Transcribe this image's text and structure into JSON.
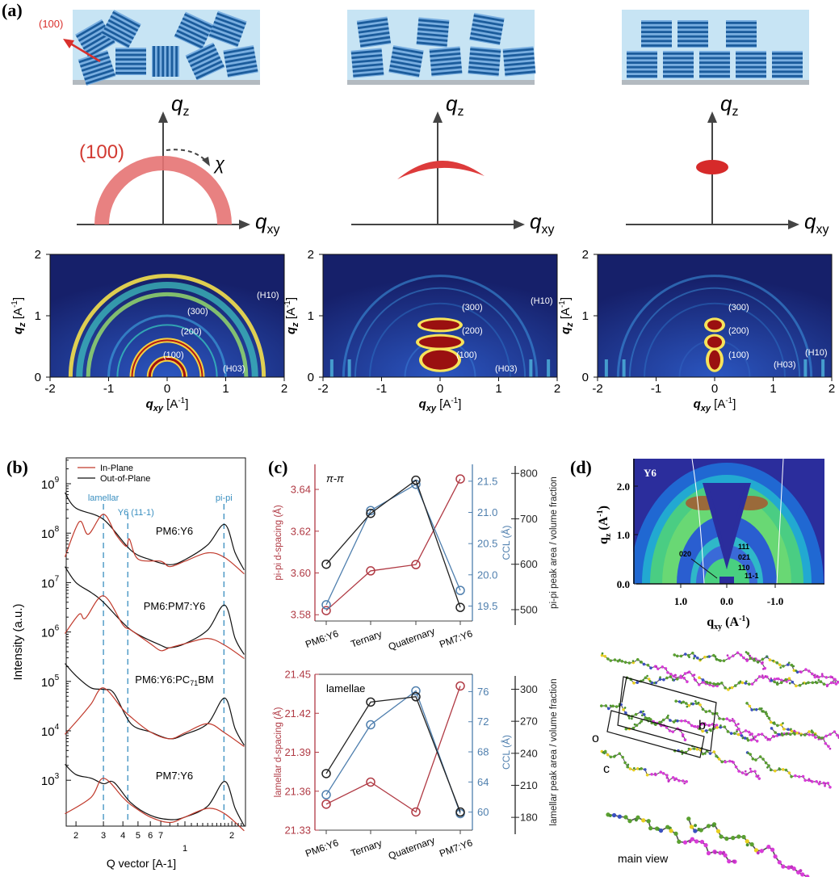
{
  "panel_labels": {
    "a": "(a)",
    "b": "(b)",
    "c": "(c)",
    "d": "(d)"
  },
  "panel_a": {
    "orientation_label": "(100)",
    "axis_q": "q",
    "sub_z": "z",
    "sub_xy": "xy",
    "chi": "χ",
    "ring_label": "(100)",
    "colors": {
      "ring": "#e57373",
      "arrow": "#d9302c",
      "film_bg": "#c7e4f4",
      "crystal_dark": "#1b5c9c",
      "crystal_light": "#79aee0",
      "substrate": "#b3bac0"
    },
    "giwaxs": {
      "unit_open": " [A",
      "unit_exp": "-1",
      "unit_close": "]",
      "x_ticks": [
        "-2",
        "-1",
        "0",
        "1",
        "2"
      ],
      "y_ticks": [
        "0",
        "1",
        "2"
      ],
      "peaks": [
        "(300)",
        "(200)",
        "(100)",
        "(H10)",
        "(H03)"
      ]
    }
  },
  "panel_d": {
    "title": "Y6",
    "y_ticks": [
      "0.0",
      "1.0",
      "2.0"
    ],
    "x_ticks": [
      "1.0",
      "0.0",
      "-1.0"
    ],
    "ylabel": {
      "main": "q",
      "sub": "z",
      "unit": " (A",
      "exp": "-1",
      "close": ")"
    },
    "xlabel": {
      "main": "q",
      "sub": "xy",
      "unit": " (A",
      "exp": "-1",
      "close": ")"
    },
    "peaks": [
      "020",
      "111",
      "021",
      "110",
      "11-1"
    ],
    "cell_labels": {
      "o": "o",
      "b": "b",
      "c": "c"
    },
    "main_view": "main view"
  },
  "chart_data": [
    {
      "type": "line",
      "panel": "(b)",
      "xlabel": "Q vector [A-1]",
      "ylabel": "Intensity (a.u.)",
      "xscale": "log",
      "yscale": "log",
      "xlim": [
        0.17,
        2.4
      ],
      "ylim": [
        50,
        5000000000.0
      ],
      "x_tick_labels": [
        "2",
        "3",
        "4",
        "5",
        "6",
        "7",
        "1",
        "2"
      ],
      "y_tick_labels": [
        "10^3",
        "10^4",
        "10^5",
        "10^6",
        "10^7",
        "10^8",
        "10^9"
      ],
      "legend": {
        "position": "top-left",
        "entries": [
          "In-Plane",
          "Out-of-Plane"
        ]
      },
      "annotations": [
        {
          "text": "lamellar",
          "x": 0.3
        },
        {
          "text": "Y6 (11-1)",
          "x": 0.43
        },
        {
          "text": "pi-pi",
          "x": 1.78
        }
      ],
      "samples": [
        {
          "label": "PM6:Y6",
          "sub": "",
          "tail": "",
          "series": [
            {
              "name": "Out-of-Plane",
              "x": [
                0.17,
                0.2,
                0.3,
                0.45,
                0.6,
                0.8,
                1.0,
                1.4,
                1.8,
                2.1,
                2.4
              ],
              "y": [
                660000000.0,
                320000000.0,
                190000000.0,
                45000000.0,
                29000000.0,
                23000000.0,
                29000000.0,
                58000000.0,
                150000000.0,
                40000000.0,
                18000000.0
              ]
            },
            {
              "name": "In-Plane",
              "x": [
                0.17,
                0.21,
                0.24,
                0.3,
                0.36,
                0.42,
                0.44,
                0.5,
                0.7,
                0.8,
                1.0,
                1.4,
                1.8,
                2.4
              ],
              "y": [
                33000000.0,
                170000000.0,
                95000000.0,
                240000000.0,
                95000000.0,
                54000000.0,
                76000000.0,
                30000000.0,
                27000000.0,
                21000000.0,
                27000000.0,
                40000000.0,
                32000000.0,
                15000000.0
              ]
            }
          ]
        },
        {
          "label": "PM6:PM7:Y6",
          "sub": "",
          "tail": "",
          "series": [
            {
              "name": "Out-of-Plane",
              "x": [
                0.17,
                0.2,
                0.25,
                0.3,
                0.45,
                0.7,
                0.8,
                1.0,
                1.4,
                1.8,
                2.1,
                2.4
              ],
              "y": [
                21000000.0,
                10000000.0,
                6300000.0,
                4000000.0,
                1100000.0,
                540000.0,
                480000.0,
                580000.0,
                1100000.0,
                3500000.0,
                740000.0,
                350000.0
              ]
            },
            {
              "name": "In-Plane",
              "x": [
                0.17,
                0.21,
                0.23,
                0.3,
                0.4,
                0.45,
                0.6,
                0.7,
                0.8,
                1.0,
                1.4,
                1.8,
                2.4
              ],
              "y": [
                930000.0,
                2300000.0,
                1900000.0,
                5400000.0,
                1400000.0,
                1100000.0,
                580000.0,
                420000.0,
                480000.0,
                580000.0,
                740000.0,
                540000.0,
                290000.0
              ]
            }
          ]
        },
        {
          "label": "PM6:Y6:PC",
          "sub": "71",
          "tail": "BM",
          "series": [
            {
              "name": "Out-of-Plane",
              "x": [
                0.17,
                0.2,
                0.25,
                0.3,
                0.35,
                0.45,
                0.6,
                0.8,
                1.0,
                1.4,
                1.8,
                2.1,
                2.4
              ],
              "y": [
                230000.0,
                130000.0,
                74000.0,
                69000.0,
                58000.0,
                14000.0,
                9500.0,
                6900.0,
                8500.0,
                14000.0,
                46000.0,
                11000.0,
                5100.0
              ]
            },
            {
              "name": "In-Plane",
              "x": [
                0.17,
                0.21,
                0.25,
                0.3,
                0.4,
                0.45,
                0.6,
                0.8,
                1.0,
                1.4,
                1.8,
                2.4
              ],
              "y": [
                8500.0,
                18000.0,
                35000.0,
                74000.0,
                27000.0,
                19000.0,
                9500.0,
                6900.0,
                9100.0,
                14000.0,
                9100.0,
                4800.0
              ]
            }
          ]
        },
        {
          "label": "PM7:Y6",
          "sub": "",
          "tail": "",
          "series": [
            {
              "name": "Out-of-Plane",
              "x": [
                0.17,
                0.2,
                0.25,
                0.3,
                0.35,
                0.45,
                0.6,
                0.8,
                1.0,
                1.4,
                1.8,
                2.1,
                2.4
              ],
              "y": [
                2100,
                1300,
                1100,
                850,
                910,
                350,
                195,
                160,
                180,
                300,
                950,
                270,
                120
              ]
            },
            {
              "name": "In-Plane",
              "x": [
                0.17,
                0.25,
                0.3,
                0.4,
                0.45,
                0.6,
                0.8,
                1.0,
                1.4,
                1.8,
                2.4
              ],
              "y": [
                210,
                450,
                1100,
                450,
                320,
                180,
                140,
                180,
                270,
                210,
                95
              ]
            }
          ]
        }
      ],
      "colors": {
        "In-Plane": "#c0392b",
        "Out-of-Plane": "#111111",
        "guides": "#3a8fc0"
      }
    },
    {
      "type": "line",
      "panel": "(c) top",
      "annotation": "π-π",
      "categories": [
        "PM6:Y6",
        "Ternary",
        "Quaternary",
        "PM7:Y6"
      ],
      "axes": [
        {
          "label": "pi-pi d-spacing (Å)",
          "color": "#b03a44",
          "lim": [
            3.577,
            3.652
          ],
          "ticks": [
            "3.58",
            "3.60",
            "3.62",
            "3.64"
          ]
        },
        {
          "label": "CCL (Å)",
          "color": "#4f7fae",
          "lim": [
            19.26,
            21.77
          ],
          "ticks": [
            "19.5",
            "20.0",
            "20.5",
            "21.0",
            "21.5"
          ]
        },
        {
          "label": "pi-pi peak area / volume fraction",
          "color": "#222222",
          "lim": [
            475,
            820
          ],
          "ticks": [
            "500",
            "600",
            "700",
            "800"
          ]
        }
      ],
      "series": [
        {
          "axis": 0,
          "values": [
            3.582,
            3.601,
            3.604,
            3.645
          ]
        },
        {
          "axis": 1,
          "values": [
            19.52,
            21.03,
            21.45,
            19.75
          ]
        },
        {
          "axis": 2,
          "values": [
            600,
            712,
            785,
            505
          ]
        }
      ]
    },
    {
      "type": "line",
      "panel": "(c) bottom",
      "annotation": "lamellae",
      "categories": [
        "PM6:Y6",
        "Ternary",
        "Quaternary",
        "PM7:Y6"
      ],
      "axes": [
        {
          "label": "lamellar d-spacing (Å)",
          "color": "#b03a44",
          "lim": [
            21.33,
            21.45
          ],
          "ticks": [
            "21.33",
            "21.36",
            "21.39",
            "21.42",
            "21.45"
          ]
        },
        {
          "label": "CCL (Å)",
          "color": "#4f7fae",
          "lim": [
            57.6,
            78.3
          ],
          "ticks": [
            "60",
            "64",
            "68",
            "72",
            "76"
          ]
        },
        {
          "label": "lamellar peak area / volume fraction",
          "color": "#222222",
          "lim": [
            168,
            314
          ],
          "ticks": [
            "180",
            "210",
            "240",
            "270",
            "300"
          ]
        }
      ],
      "series": [
        {
          "axis": 0,
          "values": [
            21.35,
            21.367,
            21.344,
            21.441
          ]
        },
        {
          "axis": 1,
          "values": [
            62.3,
            71.6,
            76.1,
            59.8
          ]
        },
        {
          "axis": 2,
          "values": [
            221,
            288,
            293,
            185
          ]
        }
      ]
    }
  ]
}
